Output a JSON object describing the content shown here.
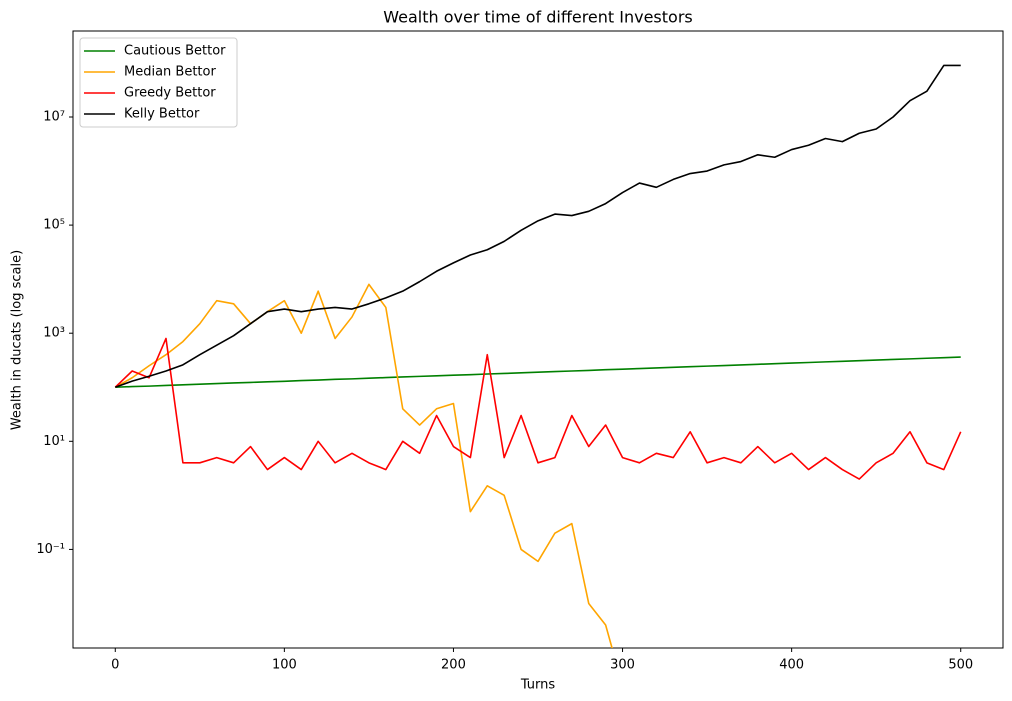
{
  "chart_data": {
    "type": "line",
    "title": "Wealth over time of different Investors",
    "xlabel": "Turns",
    "ylabel": "Wealth in ducats (log scale)",
    "log_y": true,
    "grid": false,
    "legend": "upper left",
    "xlim": [
      -25,
      525
    ],
    "ylim": [
      0.0015,
      390000000
    ],
    "xticks": [
      0,
      100,
      200,
      300,
      400,
      500
    ],
    "yticks": [
      {
        "value": 0.1,
        "label": "10⁻¹"
      },
      {
        "value": 10,
        "label": "10¹"
      },
      {
        "value": 1000,
        "label": "10³"
      },
      {
        "value": 100000,
        "label": "10⁵"
      },
      {
        "value": 10000000,
        "label": "10⁷"
      }
    ],
    "x": [
      0,
      10,
      20,
      30,
      40,
      50,
      60,
      70,
      80,
      90,
      100,
      110,
      120,
      130,
      140,
      150,
      160,
      170,
      180,
      190,
      200,
      210,
      220,
      230,
      240,
      250,
      260,
      270,
      280,
      290,
      300,
      310,
      320,
      330,
      340,
      350,
      360,
      370,
      380,
      390,
      400,
      410,
      420,
      430,
      440,
      450,
      460,
      470,
      480,
      490,
      500
    ],
    "series": [
      {
        "name": "Cautious Bettor",
        "color": "#008000",
        "values": [
          100,
          103,
          105,
          108,
          111,
          114,
          117,
          120,
          123,
          126,
          129,
          133,
          136,
          140,
          143,
          147,
          151,
          155,
          159,
          163,
          167,
          171,
          176,
          180,
          185,
          190,
          195,
          200,
          205,
          211,
          216,
          222,
          228,
          234,
          240,
          246,
          252,
          259,
          266,
          273,
          280,
          287,
          295,
          302,
          310,
          318,
          327,
          335,
          344,
          353,
          362
        ]
      },
      {
        "name": "Median Bettor",
        "color": "#ffa500",
        "values": [
          100,
          150,
          250,
          400,
          700,
          1500,
          4000,
          3500,
          1500,
          2500,
          4000,
          1000,
          6000,
          800,
          2000,
          8000,
          3000,
          40,
          20,
          40,
          50,
          0.5,
          1.5,
          1,
          0.1,
          0.06,
          0.2,
          0.3,
          0.01,
          0.004,
          0.0003,
          null,
          null,
          null,
          null,
          null,
          null,
          null,
          null,
          null,
          null,
          null,
          null,
          null,
          null,
          null,
          null,
          null,
          null,
          null,
          null
        ]
      },
      {
        "name": "Greedy Bettor",
        "color": "#ff0000",
        "values": [
          100,
          200,
          150,
          800,
          4,
          4,
          5,
          4,
          8,
          3,
          5,
          3,
          10,
          4,
          6,
          4,
          3,
          10,
          6,
          30,
          8,
          5,
          400,
          5,
          30,
          4,
          5,
          30,
          8,
          20,
          5,
          4,
          6,
          5,
          15,
          4,
          5,
          4,
          8,
          4,
          6,
          3,
          5,
          3,
          2,
          4,
          6,
          15,
          4,
          3,
          15
        ]
      },
      {
        "name": "Kelly Bettor",
        "color": "#000000",
        "values": [
          100,
          130,
          160,
          200,
          260,
          400,
          600,
          900,
          1500,
          2500,
          2800,
          2500,
          2800,
          3000,
          2800,
          3500,
          4500,
          6000,
          9000,
          14000,
          20000,
          28000,
          35000,
          50000,
          80000,
          120000,
          160000,
          150000,
          180000,
          250000,
          400000,
          600000,
          500000,
          700000,
          900000,
          1000000,
          1300000,
          1500000,
          2000000,
          1800000,
          2500000,
          3000000,
          4000000,
          3500000,
          5000000,
          6000000,
          10000000,
          20000000,
          30000000,
          90000000,
          90000000
        ]
      }
    ]
  }
}
